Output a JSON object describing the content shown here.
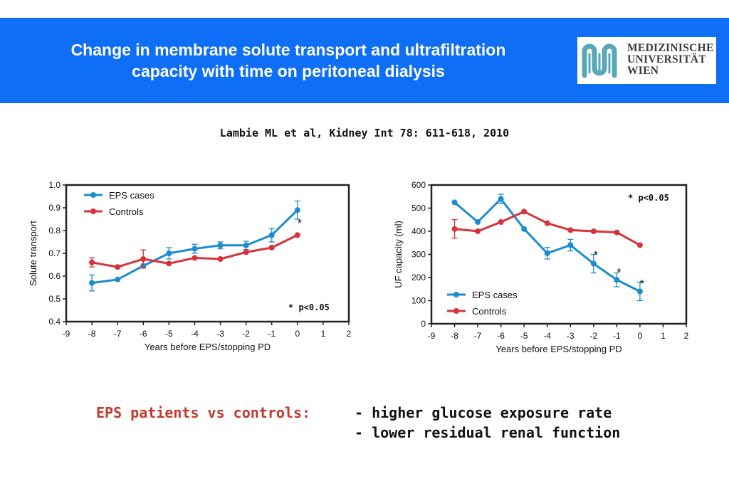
{
  "header": {
    "title_line1": "Change in membrane solute transport and ultrafiltration",
    "title_line2": "capacity with time on peritoneal dialysis",
    "logo_line1": "MEDIZINISCHE",
    "logo_line2": "UNIVERSITÄT",
    "logo_line3": "WIEN",
    "logo_color": "#5aa7b8"
  },
  "citation": "Lambie ML et al, Kidney Int 78: 611-618, 2010",
  "colors": {
    "eps": "#1b8ccc",
    "controls": "#d8323a",
    "header_bg": "#0f6ef6"
  },
  "chart_data": [
    {
      "type": "line",
      "title": "",
      "xlabel": "Years before EPS/stopping PD",
      "ylabel": "Solute transport",
      "xlim": [
        -9,
        2
      ],
      "ylim": [
        0.4,
        1.0
      ],
      "xticks": [
        "-9",
        "-8",
        "-7",
        "-6",
        "-5",
        "-4",
        "-3",
        "-2",
        "-1",
        "0",
        "1",
        "2"
      ],
      "yticks": [
        "0.4",
        "0.5",
        "0.6",
        "0.7",
        "0.8",
        "0.9",
        "1.0"
      ],
      "legend_position": "top-left",
      "series": [
        {
          "name": "EPS cases",
          "x": [
            -8,
            -7,
            -6,
            -5,
            -4,
            -3,
            -2,
            -1,
            0
          ],
          "values": [
            0.57,
            0.585,
            0.645,
            0.7,
            0.72,
            0.735,
            0.735,
            0.78,
            0.89
          ],
          "err": [
            0.035,
            0,
            0,
            0.025,
            0.02,
            0.015,
            0.018,
            0.03,
            0.04
          ]
        },
        {
          "name": "Controls",
          "x": [
            -8,
            -7,
            -6,
            -5,
            -4,
            -3,
            -2,
            -1,
            0
          ],
          "values": [
            0.66,
            0.64,
            0.675,
            0.655,
            0.68,
            0.675,
            0.705,
            0.725,
            0.78
          ],
          "err": [
            0.02,
            0,
            0.04,
            0,
            0,
            0,
            0,
            0,
            0
          ]
        }
      ],
      "annotations": [
        {
          "text": "*",
          "x": 0,
          "y": 0.835
        }
      ],
      "note": "* p<0.05"
    },
    {
      "type": "line",
      "title": "",
      "xlabel": "Years before EPS/stopping PD",
      "ylabel": "UF capacity (ml)",
      "xlim": [
        -9,
        2
      ],
      "ylim": [
        0,
        600
      ],
      "xticks": [
        "-9",
        "-8",
        "-7",
        "-6",
        "-5",
        "-4",
        "-3",
        "-2",
        "-1",
        "0",
        "1",
        "2"
      ],
      "yticks": [
        "0",
        "100",
        "200",
        "300",
        "400",
        "500",
        "600"
      ],
      "legend_position": "bottom-left",
      "series": [
        {
          "name": "EPS cases",
          "x": [
            -8,
            -7,
            -6,
            -5,
            -4,
            -3,
            -2,
            -1,
            0
          ],
          "values": [
            525,
            440,
            540,
            410,
            305,
            340,
            260,
            190,
            140
          ],
          "err": [
            0,
            0,
            20,
            0,
            25,
            25,
            40,
            30,
            40
          ]
        },
        {
          "name": "Controls",
          "x": [
            -8,
            -7,
            -6,
            -5,
            -4,
            -3,
            -2,
            -1,
            0
          ],
          "values": [
            410,
            400,
            440,
            485,
            435,
            405,
            400,
            395,
            340
          ],
          "err": [
            40,
            0,
            0,
            0,
            0,
            0,
            0,
            0,
            0
          ]
        }
      ],
      "annotations": [
        {
          "text": "*",
          "x": -2,
          "y": 300
        },
        {
          "text": "*",
          "x": -1,
          "y": 225
        },
        {
          "text": "*",
          "x": 0,
          "y": 175
        }
      ],
      "note": "* p<0.05"
    }
  ],
  "summary": {
    "label": "EPS patients vs controls:",
    "points": [
      "- higher glucose exposure rate",
      "- lower residual renal function"
    ]
  }
}
